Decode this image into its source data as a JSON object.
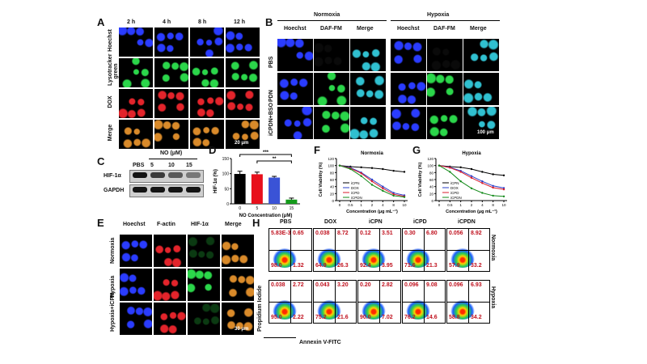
{
  "panels": {
    "A": "A",
    "B": "B",
    "C": "C",
    "D": "D",
    "E": "E",
    "F": "F",
    "G": "G",
    "H": "H"
  },
  "panelA": {
    "cols": [
      "2 h",
      "4 h",
      "8 h",
      "12 h"
    ],
    "rows": [
      "Hoechst",
      "Lysotracker green",
      "DOX",
      "Merge"
    ],
    "scale": "20 μm"
  },
  "panelB": {
    "groups": [
      "Normoxia",
      "Hypoxia"
    ],
    "cols": [
      "Hoechst",
      "DAF-FM",
      "Merge",
      "Hoechst",
      "DAF-FM",
      "Merge"
    ],
    "rows": [
      "PBS",
      "PDN",
      "iCPDN+BSO"
    ],
    "scale": "100 μm"
  },
  "panelC": {
    "header": "NO (μM)",
    "lanes": [
      "PBS",
      "5",
      "10",
      "15"
    ],
    "rows": [
      "HIF-1α",
      "GAPDH"
    ]
  },
  "panelD": {
    "sig1": "***",
    "sig2": "**"
  },
  "panelE": {
    "cols": [
      "Hoechst",
      "F-actin",
      "HIF-1α",
      "Merge"
    ],
    "rows": [
      "Normoxia",
      "Hypoxia",
      "Hypoxia+iCPN"
    ],
    "scale": "30 μm"
  },
  "panelH": {
    "cols": [
      "PBS",
      "DOX",
      "iCPN",
      "iCPD",
      "iCPDN"
    ],
    "rows": [
      "Normoxia",
      "Hypoxia"
    ],
    "xlabel": "Annexin V-FITC",
    "ylabel": "Propidium Iodide",
    "quadrants": [
      [
        [
          "5.83E-3",
          "0.65",
          "98.0",
          "1.32"
        ],
        [
          "0.038",
          "8.72",
          "64.9",
          "26.3"
        ],
        [
          "0.12",
          "3.51",
          "92.4",
          "3.95"
        ],
        [
          "0.30",
          "6.80",
          "71.6",
          "21.3"
        ],
        [
          "0.056",
          "8.92",
          "57.9",
          "33.2"
        ]
      ],
      [
        [
          "0.038",
          "2.72",
          "95.0",
          "2.22"
        ],
        [
          "0.043",
          "3.20",
          "75.2",
          "21.6"
        ],
        [
          "0.20",
          "2.82",
          "90.0",
          "7.02"
        ],
        [
          "0.096",
          "9.08",
          "76.2",
          "14.6"
        ],
        [
          "0.096",
          "6.93",
          "58.8",
          "34.2"
        ]
      ]
    ]
  },
  "chart_data": [
    {
      "panel": "D",
      "type": "bar",
      "categories": [
        "0",
        "5",
        "10",
        "15"
      ],
      "values": [
        99,
        98,
        87,
        14
      ],
      "errors": [
        9,
        7,
        4,
        5
      ],
      "colors": [
        "#000000",
        "#e8101c",
        "#3a53d6",
        "#139a1a"
      ],
      "xlabel": "NO Concentration (μM)",
      "ylabel": "HIF-1α (%)",
      "ylim": [
        0,
        150
      ],
      "yticks": [
        "0",
        "50",
        "100",
        "150"
      ]
    },
    {
      "panel": "F",
      "type": "line",
      "title": "Normoxia",
      "xlabel": "Concentration (μg mL⁻¹)",
      "ylabel": "Cell Viability (%)",
      "x": [
        "0",
        "0.5",
        "1",
        "2",
        "4",
        "8",
        "10"
      ],
      "ylim": [
        0,
        120
      ],
      "yticks": [
        "0",
        "20",
        "40",
        "60",
        "80",
        "100",
        "120"
      ],
      "series": [
        {
          "name": "iCPN",
          "color": "#000000",
          "values": [
            100,
            97,
            95,
            93,
            90,
            85,
            82
          ]
        },
        {
          "name": "DOX",
          "color": "#2a3fc9",
          "values": [
            100,
            94,
            80,
            60,
            40,
            22,
            15
          ]
        },
        {
          "name": "iCPD",
          "color": "#d81b2b",
          "values": [
            100,
            92,
            78,
            55,
            35,
            18,
            12
          ]
        },
        {
          "name": "iCPDN",
          "color": "#138a1a",
          "values": [
            100,
            90,
            70,
            45,
            28,
            14,
            10
          ]
        }
      ]
    },
    {
      "panel": "G",
      "type": "line",
      "title": "Hypoxia",
      "xlabel": "Concentration (μg mL⁻¹)",
      "ylabel": "Cell Viability (%)",
      "x": [
        "0",
        "0.5",
        "1",
        "2",
        "4",
        "8",
        "10"
      ],
      "ylim": [
        0,
        120
      ],
      "yticks": [
        "0",
        "20",
        "40",
        "60",
        "80",
        "100",
        "120"
      ],
      "series": [
        {
          "name": "iCPN",
          "color": "#000000",
          "values": [
            100,
            97,
            95,
            90,
            82,
            75,
            72
          ]
        },
        {
          "name": "DOX",
          "color": "#2a3fc9",
          "values": [
            100,
            95,
            85,
            70,
            55,
            42,
            36
          ]
        },
        {
          "name": "iCPD",
          "color": "#d81b2b",
          "values": [
            100,
            94,
            82,
            65,
            50,
            37,
            32
          ]
        },
        {
          "name": "iCPDN",
          "color": "#138a1a",
          "values": [
            100,
            82,
            55,
            35,
            22,
            14,
            12
          ]
        }
      ]
    }
  ]
}
